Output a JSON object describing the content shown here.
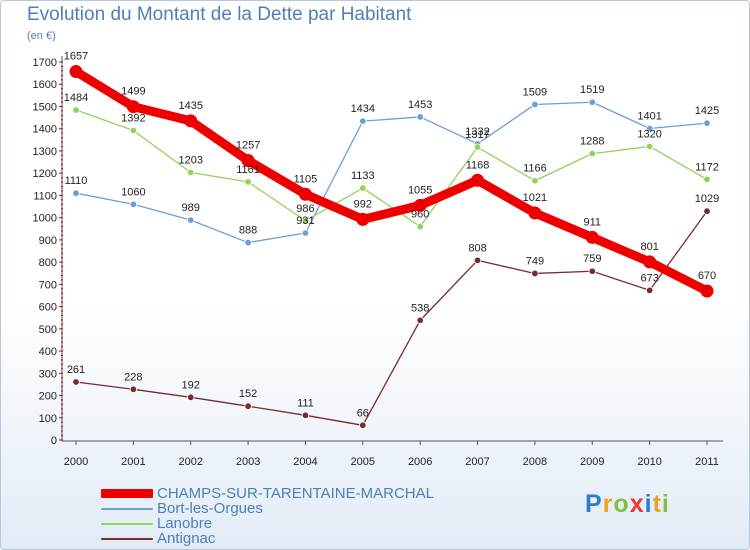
{
  "title": "Evolution du Montant de la Dette par Habitant",
  "subtitle": "(en €)",
  "logo": {
    "letters": [
      {
        "ch": "P",
        "color": "#2a7bd5"
      },
      {
        "ch": "r",
        "color": "#f0a020"
      },
      {
        "ch": "o",
        "color": "#7cc243"
      },
      {
        "ch": "x",
        "color": "#e53935"
      },
      {
        "ch": "i",
        "color": "#2a7bd5"
      },
      {
        "ch": "t",
        "color": "#f0a020"
      },
      {
        "ch": "i",
        "color": "#7cc243"
      }
    ]
  },
  "chart_data": {
    "type": "line",
    "title": "Evolution du Montant de la Dette par Habitant",
    "subtitle": "(en €)",
    "xlabel": "",
    "ylabel": "",
    "ylim": [
      0,
      1700
    ],
    "ytick_step": 100,
    "grid": false,
    "legend_position": "bottom-left",
    "x": [
      "2000",
      "2001",
      "2002",
      "2003",
      "2004",
      "2005",
      "2006",
      "2007",
      "2008",
      "2009",
      "2010",
      "2011"
    ],
    "series": [
      {
        "name": "CHAMPS-SUR-TARENTAINE-MARCHAL",
        "color": "#ee0000",
        "emphasis": true,
        "values": [
          1657,
          1499,
          1435,
          1257,
          1105,
          992,
          1055,
          1168,
          1021,
          911,
          801,
          670
        ]
      },
      {
        "name": "Bort-les-Orgues",
        "color": "#6c9fd4",
        "emphasis": false,
        "values": [
          1110,
          1060,
          989,
          888,
          931,
          1434,
          1453,
          1332,
          1509,
          1519,
          1401,
          1425
        ]
      },
      {
        "name": "Lanobre",
        "color": "#8fd35a",
        "emphasis": false,
        "values": [
          1484,
          1392,
          1203,
          1161,
          986,
          1133,
          960,
          1317,
          1166,
          1288,
          1320,
          1172
        ]
      },
      {
        "name": "Antignac",
        "color": "#7a2b2b",
        "emphasis": false,
        "values": [
          261,
          228,
          192,
          152,
          111,
          66,
          538,
          808,
          749,
          759,
          673,
          1029
        ]
      }
    ]
  }
}
